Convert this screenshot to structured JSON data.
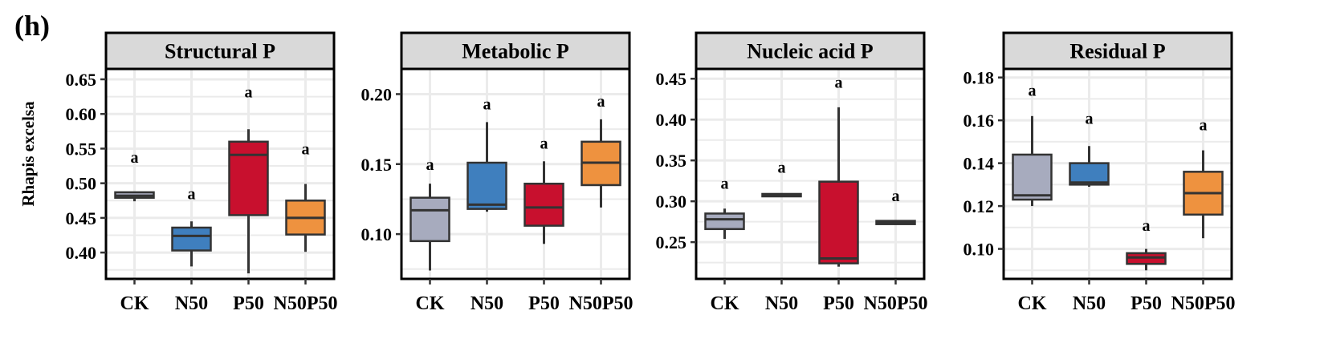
{
  "panel_label": "(h)",
  "ylabel": "Rhapis excelsa",
  "colors": {
    "CK": "#A7ABBE",
    "N50": "#3F7FBE",
    "P50": "#C8102E",
    "N50P50": "#EE923F",
    "strip_fill": "#D9D9D9",
    "grid": "#EBEBEB",
    "frame": "#000000"
  },
  "chart_data": [
    {
      "type": "box",
      "title": "Structural P",
      "categories": [
        "CK",
        "N50",
        "P50",
        "N50P50"
      ],
      "ylim": [
        0.362,
        0.665
      ],
      "yticks": [
        0.4,
        0.45,
        0.5,
        0.55,
        0.6,
        0.65
      ],
      "ytick_labels": [
        "0.40",
        "0.45",
        "0.50",
        "0.55",
        "0.60",
        "0.65"
      ],
      "boxes": [
        {
          "min": 0.474,
          "q1": 0.479,
          "median": 0.482,
          "q3": 0.487,
          "max": 0.487
        },
        {
          "min": 0.38,
          "q1": 0.403,
          "median": 0.424,
          "q3": 0.436,
          "max": 0.445
        },
        {
          "min": 0.37,
          "q1": 0.454,
          "median": 0.541,
          "q3": 0.56,
          "max": 0.578
        },
        {
          "min": 0.401,
          "q1": 0.426,
          "median": 0.45,
          "q3": 0.475,
          "max": 0.499
        }
      ],
      "letters": [
        "a",
        "a",
        "a",
        "a"
      ],
      "letter_y": [
        0.538,
        0.485,
        0.632,
        0.55
      ]
    },
    {
      "type": "box",
      "title": "Metabolic P",
      "categories": [
        "CK",
        "N50",
        "P50",
        "N50P50"
      ],
      "ylim": [
        0.068,
        0.218
      ],
      "yticks": [
        0.1,
        0.15,
        0.2
      ],
      "ytick_labels": [
        "0.10",
        "0.15",
        "0.20"
      ],
      "boxes": [
        {
          "min": 0.074,
          "q1": 0.095,
          "median": 0.117,
          "q3": 0.126,
          "max": 0.136
        },
        {
          "min": 0.116,
          "q1": 0.118,
          "median": 0.121,
          "q3": 0.151,
          "max": 0.18
        },
        {
          "min": 0.093,
          "q1": 0.106,
          "median": 0.119,
          "q3": 0.136,
          "max": 0.152
        },
        {
          "min": 0.119,
          "q1": 0.135,
          "median": 0.151,
          "q3": 0.166,
          "max": 0.182
        }
      ],
      "letters": [
        "a",
        "a",
        "a",
        "a"
      ],
      "letter_y": [
        0.15,
        0.193,
        0.165,
        0.195
      ]
    },
    {
      "type": "box",
      "title": "Nucleic acid P",
      "categories": [
        "CK",
        "N50",
        "P50",
        "N50P50"
      ],
      "ylim": [
        0.205,
        0.462
      ],
      "yticks": [
        0.25,
        0.3,
        0.35,
        0.4,
        0.45
      ],
      "ytick_labels": [
        "0.25",
        "0.30",
        "0.35",
        "0.40",
        "0.45"
      ],
      "boxes": [
        {
          "min": 0.254,
          "q1": 0.266,
          "median": 0.278,
          "q3": 0.285,
          "max": 0.291
        },
        {
          "min": 0.306,
          "q1": 0.306,
          "median": 0.308,
          "q3": 0.309,
          "max": 0.309
        },
        {
          "min": 0.22,
          "q1": 0.224,
          "median": 0.23,
          "q3": 0.324,
          "max": 0.415
        },
        {
          "min": 0.272,
          "q1": 0.272,
          "median": 0.274,
          "q3": 0.276,
          "max": 0.276
        }
      ],
      "letters": [
        "a",
        "a",
        "a",
        "a"
      ],
      "letter_y": [
        0.322,
        0.342,
        0.446,
        0.307
      ]
    },
    {
      "type": "box",
      "title": "Residual P",
      "categories": [
        "CK",
        "N50",
        "P50",
        "N50P50"
      ],
      "ylim": [
        0.086,
        0.184
      ],
      "yticks": [
        0.1,
        0.12,
        0.14,
        0.16,
        0.18
      ],
      "ytick_labels": [
        "0.10",
        "0.12",
        "0.14",
        "0.16",
        "0.18"
      ],
      "boxes": [
        {
          "min": 0.12,
          "q1": 0.123,
          "median": 0.125,
          "q3": 0.144,
          "max": 0.162
        },
        {
          "min": 0.129,
          "q1": 0.13,
          "median": 0.131,
          "q3": 0.14,
          "max": 0.148
        },
        {
          "min": 0.09,
          "q1": 0.093,
          "median": 0.096,
          "q3": 0.098,
          "max": 0.1
        },
        {
          "min": 0.105,
          "q1": 0.116,
          "median": 0.126,
          "q3": 0.136,
          "max": 0.146
        }
      ],
      "letters": [
        "a",
        "a",
        "a",
        "a"
      ],
      "letter_y": [
        0.174,
        0.161,
        0.111,
        0.158
      ]
    }
  ]
}
